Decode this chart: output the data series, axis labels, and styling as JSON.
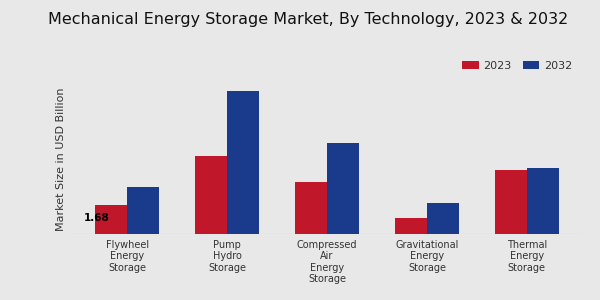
{
  "title": "Mechanical Energy Storage Market, By Technology, 2023 & 2032",
  "ylabel": "Market Size in USD Billion",
  "categories": [
    "Flywheel\nEnergy\nStorage",
    "Pump\nHydro\nStorage",
    "Compressed\nAir\nEnergy\nStorage",
    "Gravitational\nEnergy\nStorage",
    "Thermal\nEnergy\nStorage"
  ],
  "values_2023": [
    1.68,
    4.5,
    3.0,
    0.9,
    3.7
  ],
  "values_2032": [
    2.7,
    8.2,
    5.2,
    1.8,
    3.8
  ],
  "color_2023": "#c0182a",
  "color_2032": "#1a3a8c",
  "annotation_value": "1.68",
  "annotation_category_index": 0,
  "bar_width": 0.32,
  "background_color": "#e8e8e8",
  "legend_labels": [
    "2023",
    "2032"
  ],
  "title_fontsize": 11.5,
  "axis_label_fontsize": 8,
  "tick_fontsize": 7,
  "legend_fontsize": 8
}
